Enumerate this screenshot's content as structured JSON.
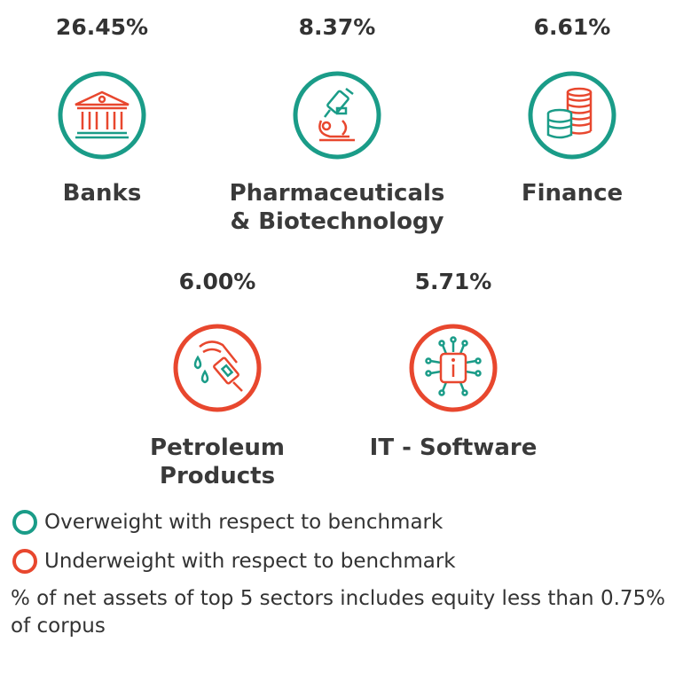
{
  "colors": {
    "overweight": "#1a9c88",
    "underweight": "#e8472e"
  },
  "sectors": [
    {
      "pct": "26.45%",
      "name_lines": [
        "Banks"
      ],
      "weight": "overweight",
      "icon": "bank-icon"
    },
    {
      "pct": "8.37%",
      "name_lines": [
        "Pharmaceuticals",
        "& Biotechnology"
      ],
      "weight": "overweight",
      "icon": "microscope-icon"
    },
    {
      "pct": "6.61%",
      "name_lines": [
        "Finance"
      ],
      "weight": "overweight",
      "icon": "coins-icon"
    },
    {
      "pct": "6.00%",
      "name_lines": [
        "Petroleum",
        "Products"
      ],
      "weight": "underweight",
      "icon": "fuel-nozzle-icon"
    },
    {
      "pct": "5.71%",
      "name_lines": [
        "IT - Software"
      ],
      "weight": "underweight",
      "icon": "circuit-chip-icon"
    }
  ],
  "legend": {
    "overweight": "Overweight with respect to benchmark",
    "underweight": "Underweight with respect to benchmark"
  },
  "footnote": "% of net assets of top 5 sectors includes equity less than 0.75% of corpus"
}
